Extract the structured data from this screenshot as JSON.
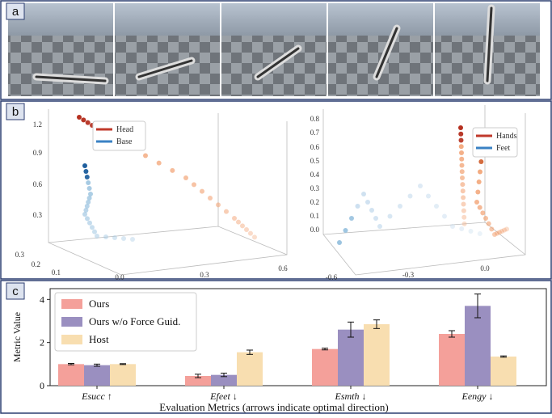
{
  "panels": {
    "a": {
      "label": "a"
    },
    "b": {
      "label": "b",
      "plots": [
        {
          "legend": [
            "Head",
            "Base"
          ],
          "zticks": [
            "1.2",
            "0.9",
            "0.6",
            "0.3"
          ],
          "xticks": [
            "0.0",
            "0.3",
            "0.6"
          ],
          "yticks": [
            "0.3",
            "0.2",
            "0.1"
          ]
        },
        {
          "legend": [
            "Hands",
            "Feet"
          ],
          "zticks": [
            "0.8",
            "0.7",
            "0.6",
            "0.5",
            "0.4",
            "0.3",
            "0.2",
            "0.1",
            "0.0"
          ],
          "xticks": [
            "-0.6",
            "-0.3",
            "0.0"
          ]
        }
      ]
    },
    "c": {
      "label": "c"
    }
  },
  "chart_data": {
    "type": "bar",
    "ylabel": "Metric Value",
    "xlabel": "Evaluation Metrics (arrows indicate optimal direction)",
    "categories": [
      "Esucc ↑",
      "Efeet ↓",
      "Esmth ↓",
      "Eengy ↓"
    ],
    "series": [
      {
        "name": "Ours",
        "color": "#f4a09a",
        "values": [
          1.0,
          0.45,
          1.7,
          2.4
        ],
        "errors": [
          0.03,
          0.08,
          0.04,
          0.15
        ]
      },
      {
        "name": "Ours w/o Force Guid.",
        "color": "#9a8fc0",
        "values": [
          0.95,
          0.5,
          2.6,
          3.7
        ],
        "errors": [
          0.05,
          0.08,
          0.35,
          0.55
        ]
      },
      {
        "name": "Host",
        "color": "#f8deb0",
        "values": [
          1.0,
          1.55,
          2.85,
          1.35
        ],
        "errors": [
          0.02,
          0.1,
          0.2,
          0.03
        ]
      }
    ],
    "ylim": [
      0,
      4.5
    ],
    "yticks": [
      0,
      2,
      4
    ],
    "legend": "upper left"
  }
}
